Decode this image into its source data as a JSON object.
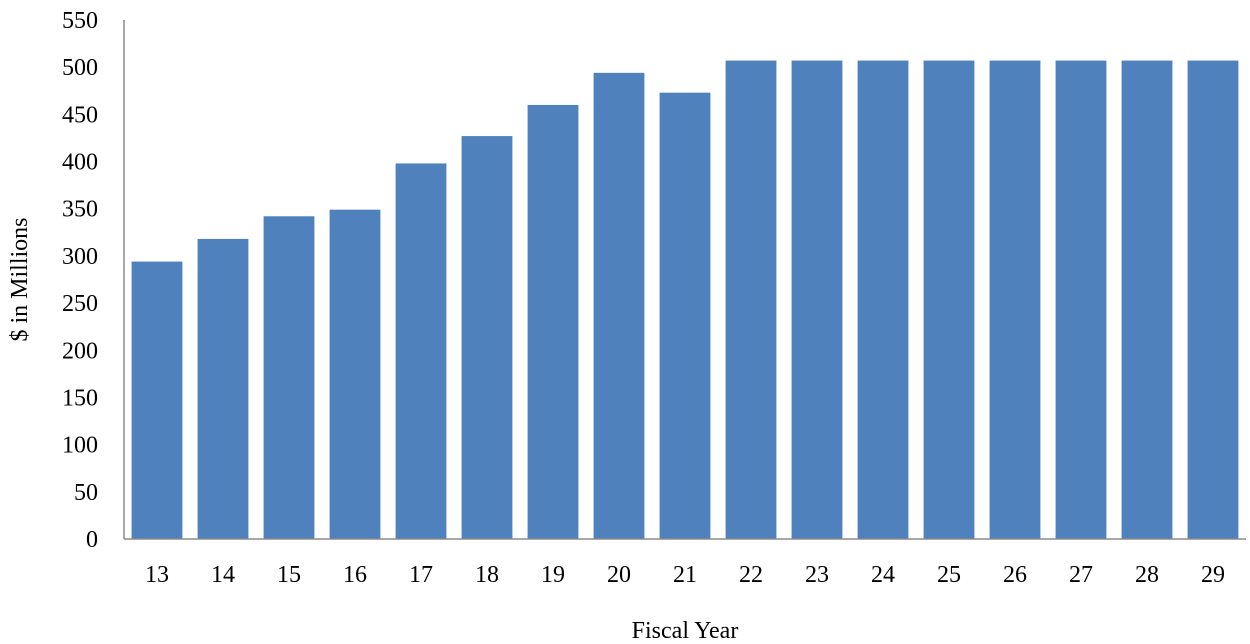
{
  "chart_data": {
    "type": "bar",
    "title": "",
    "xlabel": "Fiscal Year",
    "ylabel": "$ in Millions",
    "categories": [
      "13",
      "14",
      "15",
      "16",
      "17",
      "18",
      "19",
      "20",
      "21",
      "22",
      "23",
      "24",
      "25",
      "26",
      "27",
      "28",
      "29"
    ],
    "values": [
      294,
      318,
      342,
      349,
      398,
      427,
      460,
      494,
      473,
      507,
      507,
      507,
      507,
      507,
      507,
      507,
      507
    ],
    "ylim": [
      0,
      550
    ],
    "yticks": [
      0,
      50,
      100,
      150,
      200,
      250,
      300,
      350,
      400,
      450,
      500,
      550
    ],
    "grid": false,
    "legend": "none",
    "bar_color": "#4f81bd"
  }
}
